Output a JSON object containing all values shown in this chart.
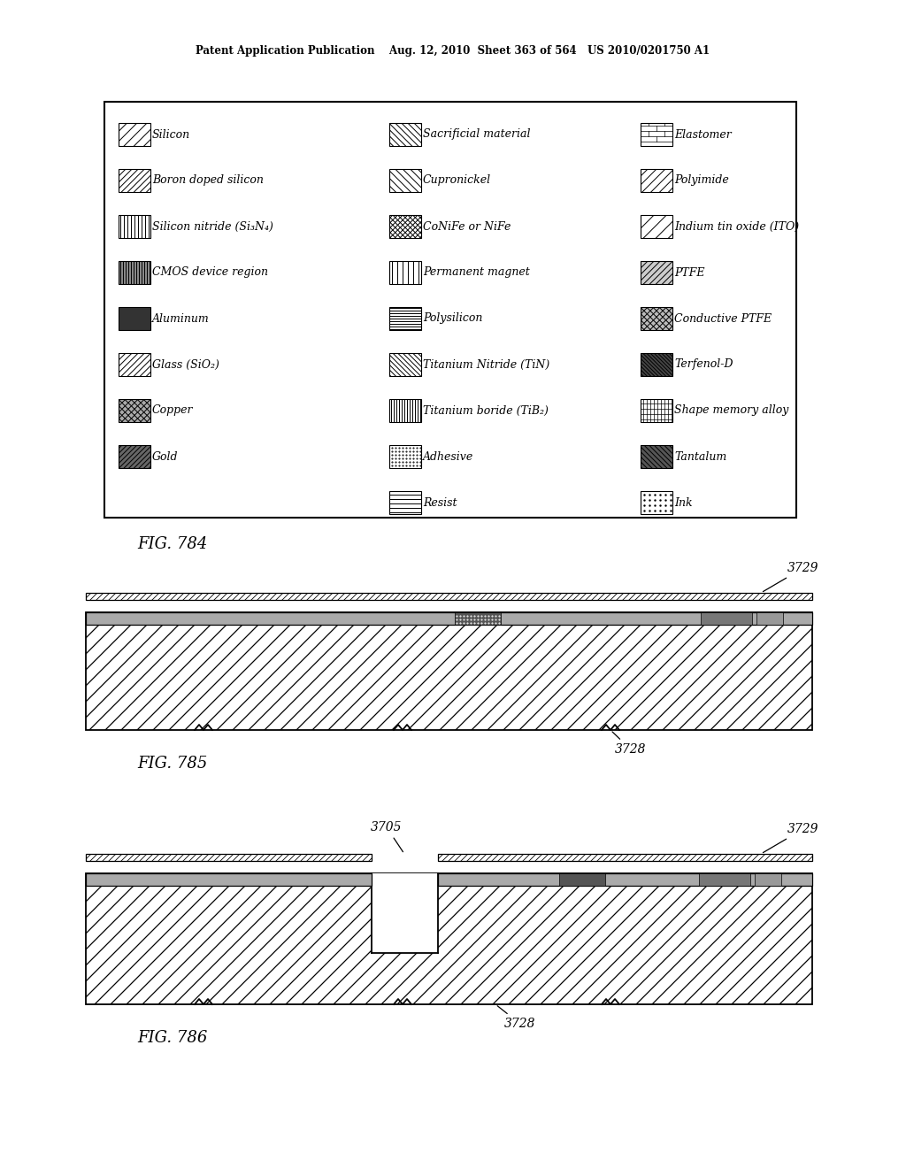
{
  "title_line": "Patent Application Publication    Aug. 12, 2010  Sheet 363 of 564   US 2010/0201750 A1",
  "fig784_label": "FIG. 784",
  "fig785_label": "FIG. 785",
  "fig786_label": "FIG. 786",
  "legend_items_col1": [
    [
      "Silicon",
      "diagonal_sparse_white",
      "white",
      45,
      8,
      false
    ],
    [
      "Boron doped silicon",
      "diagonal_medium_white",
      "white",
      45,
      5,
      false
    ],
    [
      "Silicon nitride (Si₃N₄)",
      "vertical_lines",
      "white",
      90,
      4,
      false
    ],
    [
      "CMOS device region",
      "vertical_dense_gray",
      "#888888",
      90,
      3,
      false
    ],
    [
      "Aluminum",
      "solid_dark",
      "#333333",
      0,
      0,
      false
    ],
    [
      "Glass (SiO₂)",
      "diagonal_medium_white",
      "white",
      45,
      5,
      false
    ],
    [
      "Copper",
      "crosshatch_gray",
      "#aaaaaa",
      45,
      5,
      true
    ],
    [
      "Gold",
      "diagonal_dense_dark",
      "#666666",
      45,
      4,
      false
    ]
  ],
  "legend_items_col2": [
    [
      "Sacrificial material",
      "diagonal_right_dense",
      "white",
      -45,
      5,
      false
    ],
    [
      "Cupronickel",
      "diagonal_right_medium",
      "white",
      -45,
      6,
      false
    ],
    [
      "CoNiFe or NiFe",
      "crosshatch_fine",
      "white",
      45,
      4,
      true
    ],
    [
      "Permanent magnet",
      "vertical_sparse",
      "white",
      90,
      6,
      false
    ],
    [
      "Polysilicon",
      "horizontal_fine",
      "white",
      0,
      3,
      false
    ],
    [
      "Titanium Nitride (TiN)",
      "diagonal_right_fine",
      "white",
      -45,
      4,
      false
    ],
    [
      "Titanium boride (TiB₂)",
      "vertical_dense",
      "white",
      90,
      3,
      false
    ],
    [
      "Adhesive",
      "dotted_pattern",
      "white",
      0,
      0,
      false
    ],
    [
      "Resist",
      "horizontal_sparse",
      "white",
      0,
      5,
      false
    ]
  ],
  "legend_items_col3": [
    [
      "Elastomer",
      "brick_pattern",
      "white",
      0,
      0,
      false
    ],
    [
      "Polyimide",
      "diagonal_wide",
      "white",
      45,
      7,
      false
    ],
    [
      "Indium tin oxide (ITO)",
      "diagonal_sparse_light",
      "white",
      45,
      10,
      false
    ],
    [
      "PTFE",
      "diagonal_medium_dark",
      "#cccccc",
      45,
      5,
      false
    ],
    [
      "Conductive PTFE",
      "diagonal_crosshatch",
      "#bbbbbb",
      45,
      5,
      true
    ],
    [
      "Terfenol-D",
      "diagonal_dense_black",
      "#444444",
      -45,
      3,
      false
    ],
    [
      "Shape memory alloy",
      "vertical_horizontal_mix",
      "white",
      0,
      0,
      false
    ],
    [
      "Tantalum",
      "diagonal_dark_dense",
      "#555555",
      -45,
      4,
      false
    ],
    [
      "Ink",
      "dotted_sparse",
      "white",
      0,
      0,
      false
    ]
  ],
  "bg_color": "#ffffff"
}
